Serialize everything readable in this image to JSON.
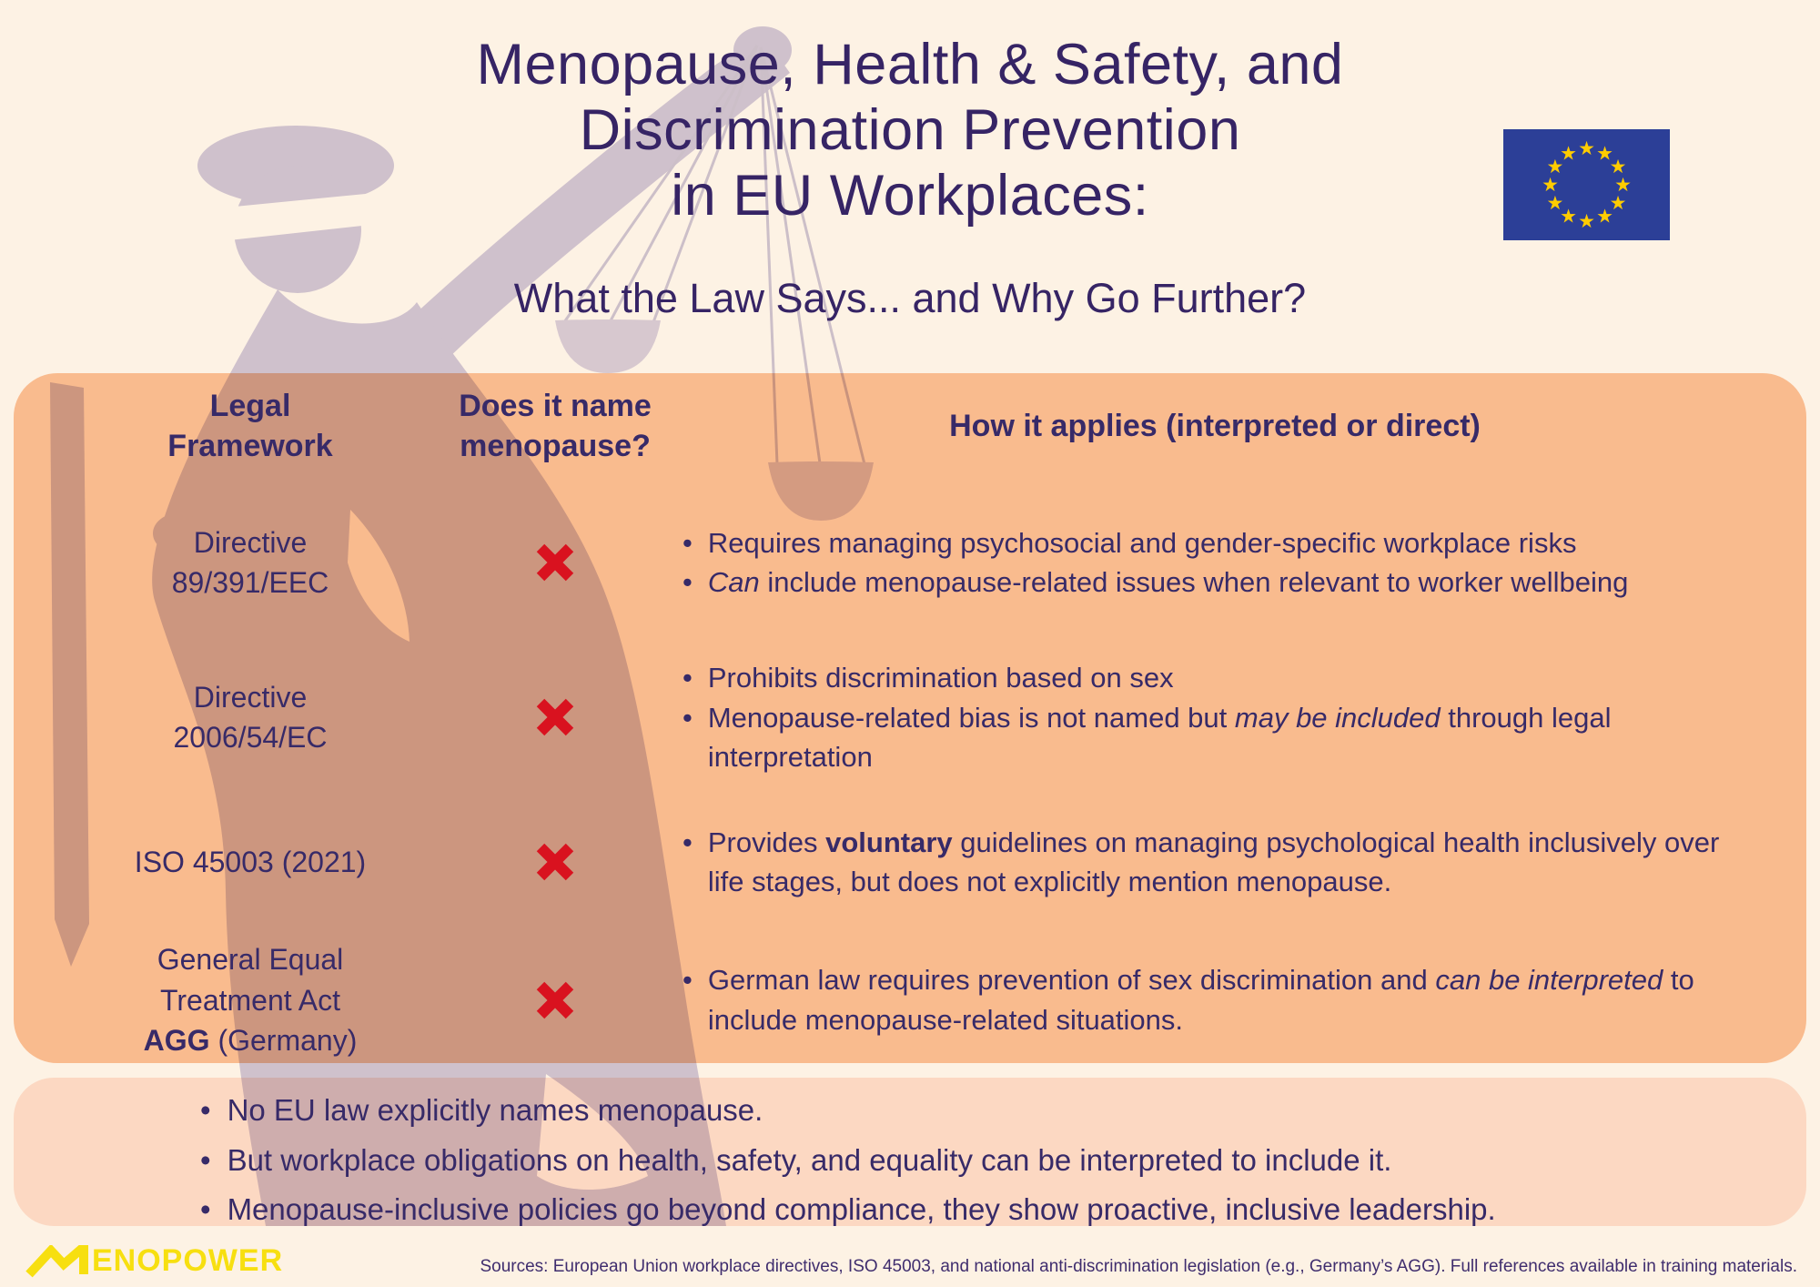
{
  "page": {
    "title_lines": [
      "Menopause, Health & Safety, and",
      "Discrimination Prevention",
      "in EU Workplaces:"
    ],
    "subtitle": "What the Law Says... and Why Go Further?"
  },
  "colors": {
    "background": "#fdf2e4",
    "panel_orange": "#f9bb8e",
    "panel_peach": "#fcd8c2",
    "text_purple": "#372a68",
    "x_red": "#d9121f",
    "logo_yellow": "#f7df10",
    "eu_flag_blue": "#2c3f97",
    "eu_star_yellow": "#ffcc00",
    "silhouette_lavender": "#d1cce4"
  },
  "icons": {
    "eu_flag": "eu-flag",
    "no_mark": "red-x-icon",
    "bullet_marker": "•"
  },
  "table": {
    "headers": {
      "framework": "Legal Framework",
      "names_menopause": "Does it name menopause?",
      "applies": "How it applies (interpreted or direct)"
    },
    "rows": [
      {
        "framework_lines": [
          [
            {
              "t": "Directive"
            }
          ],
          [
            {
              "t": "89/391/EEC"
            }
          ]
        ],
        "names_menopause": "no",
        "bullets": [
          [
            {
              "t": "Requires managing psychosocial and gender-specific workplace risks"
            }
          ],
          [
            {
              "t": "Can",
              "i": true
            },
            {
              "t": " include menopause-related issues when relevant to worker wellbeing"
            }
          ]
        ]
      },
      {
        "framework_lines": [
          [
            {
              "t": "Directive"
            }
          ],
          [
            {
              "t": "2006/54/EC"
            }
          ]
        ],
        "names_menopause": "no",
        "bullets": [
          [
            {
              "t": "Prohibits discrimination based on sex"
            }
          ],
          [
            {
              "t": "Menopause-related bias is not named but "
            },
            {
              "t": "may be included",
              "i": true
            },
            {
              "t": " through legal interpretation"
            }
          ]
        ]
      },
      {
        "framework_lines": [
          [
            {
              "t": "ISO 45003 (2021)"
            }
          ]
        ],
        "names_menopause": "no",
        "bullets": [
          [
            {
              "t": "Provides "
            },
            {
              "t": "voluntary",
              "b": true
            },
            {
              "t": " guidelines on managing psychological health inclusively over life stages, but does not explicitly mention menopause."
            }
          ]
        ]
      },
      {
        "framework_lines": [
          [
            {
              "t": "General Equal"
            }
          ],
          [
            {
              "t": "Treatment Act"
            }
          ],
          [
            {
              "t": "AGG",
              "b": true
            },
            {
              "t": " (Germany)"
            }
          ]
        ],
        "names_menopause": "no",
        "bullets": [
          [
            {
              "t": "German law requires prevention of sex discrimination and "
            },
            {
              "t": "can be interpreted",
              "i": true
            },
            {
              "t": " to include menopause-related situations."
            }
          ]
        ]
      }
    ]
  },
  "summary": {
    "bullets": [
      "No EU law explicitly names menopause.",
      "But workplace obligations on health, safety, and equality can be interpreted to include it.",
      "Menopause-inclusive policies go beyond compliance, they show proactive, inclusive leadership."
    ]
  },
  "footer": {
    "logo": "MENOPOWER",
    "logo_text_part": "ENOPOWER",
    "sources": "Sources: European Union workplace directives, ISO 45003, and national anti-discrimination legislation (e.g., Germany’s AGG). Full references available in training materials."
  }
}
